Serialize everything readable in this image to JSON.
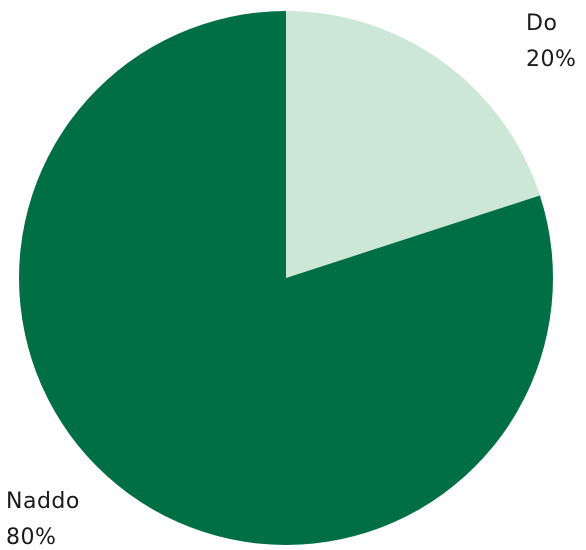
{
  "chart_data": {
    "type": "pie",
    "slices": [
      {
        "label": "Do",
        "value": 20,
        "value_label": "20%",
        "color": "#cce7d6"
      },
      {
        "label": "Naddo",
        "value": 80,
        "value_label": "80%",
        "color": "#006f45"
      }
    ],
    "start_angle": "12 o'clock",
    "direction": "clockwise",
    "legend": "none"
  }
}
